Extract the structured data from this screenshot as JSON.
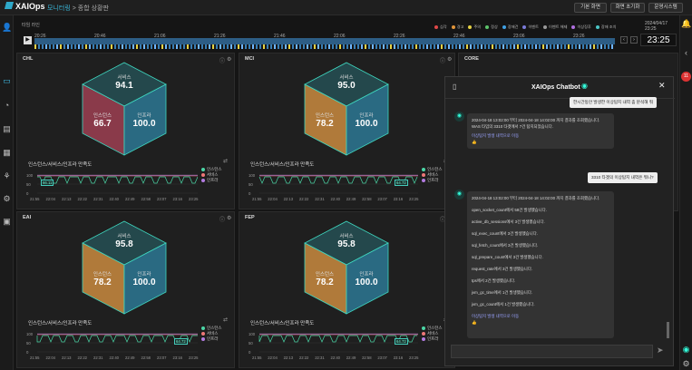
{
  "app": {
    "name": "XAIOps",
    "menu": "모니터링",
    "page": "종합 상황판"
  },
  "topbar": {
    "btn1": "기본 화면",
    "btn2": "화면 초기화",
    "btn3": "운영시스템"
  },
  "timeline": {
    "label": "타임 라인",
    "times": [
      "20:26",
      "20:46",
      "21:06",
      "21:26",
      "21:46",
      "22:06",
      "22:26",
      "22:46",
      "23:06",
      "23:26"
    ],
    "legend": [
      "심각",
      "경고",
      "주의",
      "정상",
      "장애건",
      "이벤트",
      "이벤트 해제",
      "이상징후",
      "장애 조치"
    ],
    "date": "2024/04/17 23:25",
    "clock": "23:25"
  },
  "panels": [
    {
      "title": "CHL",
      "service": "94.1",
      "instance": "66.7",
      "infra": "100.0",
      "badge": "66.11"
    },
    {
      "title": "MCI",
      "service": "95.0",
      "instance": "78.2",
      "infra": "100.0",
      "badge": "64.72"
    },
    {
      "title": "EAI",
      "service": "95.8",
      "instance": "78.2",
      "infra": "100.0",
      "badge": "64.72"
    },
    {
      "title": "FEP",
      "service": "95.8",
      "instance": "78.2",
      "infra": "100.0",
      "badge": "64.72"
    }
  ],
  "panel_right_title": "CORE",
  "labels": {
    "service": "서비스",
    "instance": "인스턴스",
    "infra": "인프라",
    "satisfaction": "인스턴스/서비스/인프라 만족도"
  },
  "chart_legend": [
    "인스턴스",
    "서비스",
    "인프라"
  ],
  "chart_x": [
    "21:55",
    "22:04",
    "22:13",
    "22:22",
    "22:31",
    "22:40",
    "22:49",
    "22:58",
    "23:07",
    "23:16",
    "23:25"
  ],
  "chart_y": [
    "100",
    "50",
    "0"
  ],
  "chatbot": {
    "title": "XAIOps Chatbot",
    "u1": "한시간동안 발생한 이상탐지 내역 좀 분석해 줘",
    "b1_line1": "2024-04-18 13:02:00 부터 2024-04-18 14:02:00 까지 결과를 조회했습니다.",
    "b1_line2": "WAS 타입의 3310 타겟에서 7건 탐지되었습니다.",
    "b1_link": "이상탐지 발생 내역으로 이동",
    "u2": "3310 타겟의 이상탐지 내역은 뭐니?",
    "b2_line1": "2024-04-18 13:02:00 부터 2024-04-18 14:02:00 까지 결과를 조회했습니다.",
    "b2_items": [
      "open_socket_count에서 58건 발생했습니다.",
      "active_db_sessions에서 3건 발생했습니다.",
      "sql_exec_count에서 3건 발생했습니다.",
      "sql_fetch_count에서 3건 발생했습니다.",
      "sql_prepare_count에서 3건 발생했습니다.",
      "request_rate에서 3건 발생했습니다.",
      "tps에서 2건 발생했습니다.",
      "jvm_gc_time에서 1건 발생했습니다.",
      "jvm_gc_count에서 1건 발생했습니다."
    ],
    "b2_link": "이상탐지 발생 내역으로 이동"
  },
  "colors": {
    "instance": "#f0d0d0",
    "service": "#4bd6a6",
    "infra": "#b37be0"
  }
}
